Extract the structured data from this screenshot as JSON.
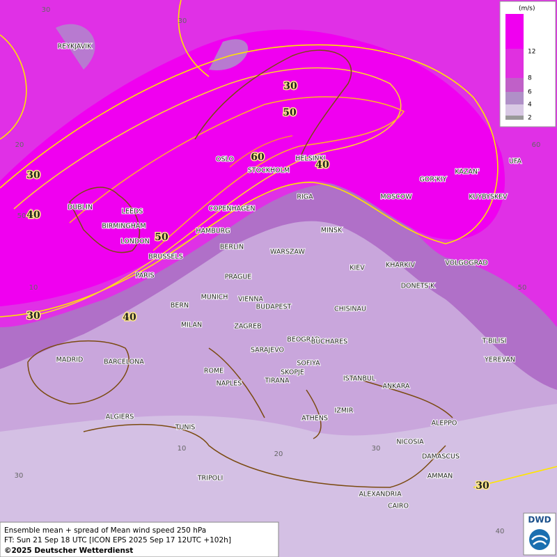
{
  "legend": {
    "unit": "(m/s)",
    "labels": [
      "12",
      "8",
      "6",
      "4",
      "2"
    ]
  },
  "cities": [
    "REYKJAVIK",
    "OSLO",
    "STOCKHOLM",
    "HELSINKI",
    "DUBLIN",
    "LEEDS",
    "BIRMINGHAM",
    "LONDON",
    "COPENHAGEN",
    "RIGA",
    "MOSCOW",
    "GOR'KIY",
    "KAZAN'",
    "UFA",
    "KUYBYSKEV",
    "HAMBURG",
    "BERLIN",
    "MINSK",
    "WARSZAW",
    "BRUSSELS",
    "PARIS",
    "PRAGUE",
    "KIEV",
    "KHARKIV",
    "VOLGOGRAD",
    "MUNICH",
    "VIENNA",
    "BUDAPEST",
    "CHISINAU",
    "DONETS'K",
    "BERN",
    "MILAN",
    "ZAGREB",
    "BEOGRAD",
    "BUCHARES",
    "T'BILISI",
    "MADRID",
    "BARCELONA",
    "SARAJEVO",
    "SOFIYA",
    "YEREVAN",
    "ROME",
    "SKOPJE",
    "TIRANA",
    "ISTANBUL",
    "NAPLES",
    "ANKARA",
    "ALGIERS",
    "ATHENS",
    "IZMIR",
    "ALEPPO",
    "TUNIS",
    "NICOSIA",
    "DAMASCUS",
    "AMMAN",
    "TRIPOLI",
    "ALEXANDRIA",
    "CAIRO"
  ],
  "contour_labels": [
    30,
    50,
    60,
    40,
    30,
    40,
    50,
    40,
    30,
    30
  ],
  "grid_labels": [
    30,
    30,
    20,
    50,
    10,
    30,
    10,
    20,
    30,
    40,
    60,
    50
  ],
  "footer": {
    "line1": "Ensemble mean + spread of Mean wind speed 250 hPa",
    "line2": "FT: Sun 21 Sep 18 UTC [ICON EPS 2025 Sep 17 12UTC +102h]",
    "line3": "©2025 Deutscher Wetterdienst"
  },
  "logo": "DWD"
}
